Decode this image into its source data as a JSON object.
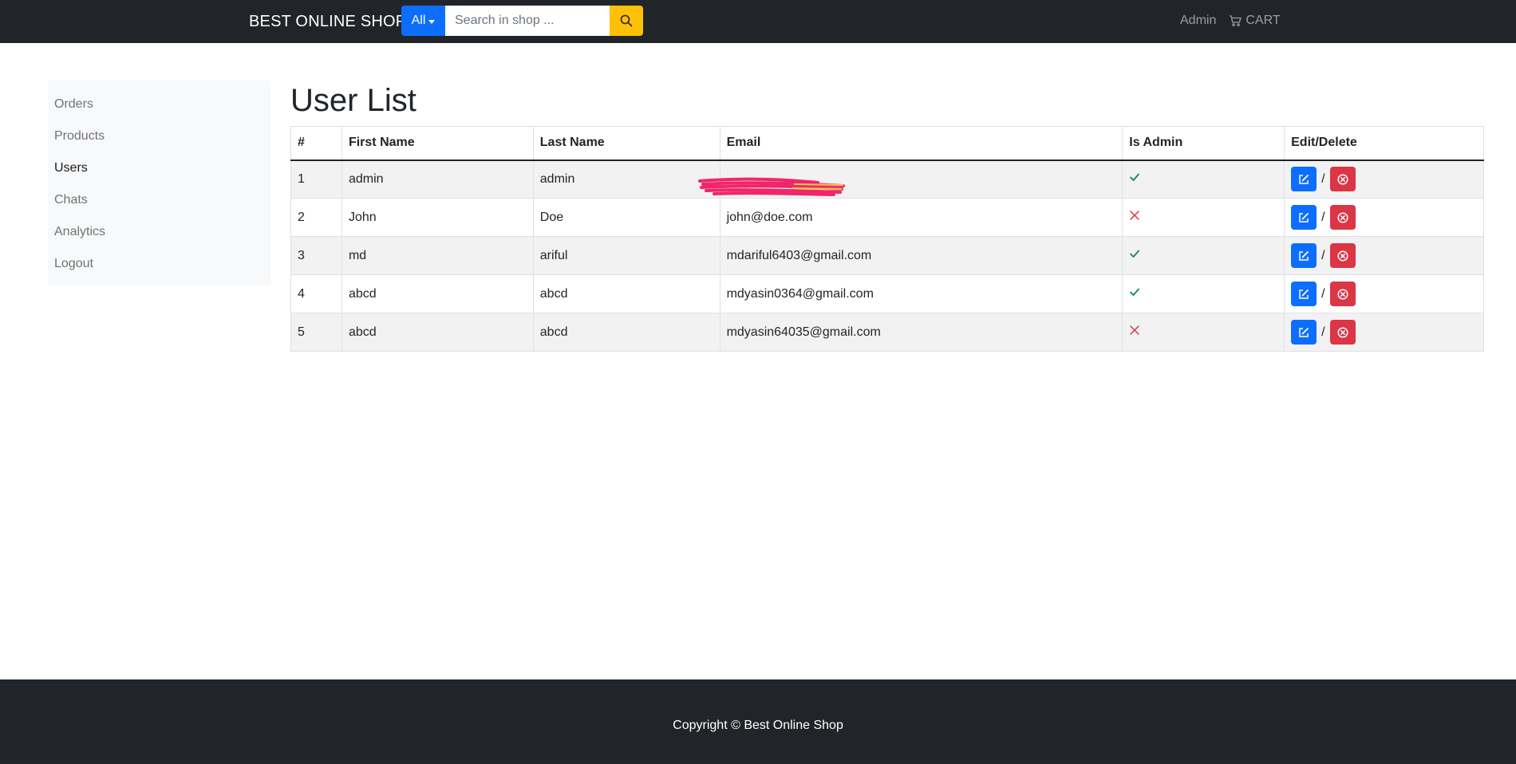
{
  "navbar": {
    "brand": "BEST ONLINE SHOP",
    "category_label": "All",
    "search_placeholder": "Search in shop ...",
    "admin_link": "Admin",
    "cart_link": "CART"
  },
  "sidebar": {
    "items": [
      {
        "label": "Orders"
      },
      {
        "label": "Products"
      },
      {
        "label": "Users",
        "active": true
      },
      {
        "label": "Chats"
      },
      {
        "label": "Analytics"
      },
      {
        "label": "Logout"
      }
    ]
  },
  "main": {
    "title": "User List",
    "table": {
      "headers": [
        "#",
        "First Name",
        "Last Name",
        "Email",
        "Is Admin",
        "Edit/Delete"
      ],
      "rows": [
        {
          "num": "1",
          "first": "admin",
          "last": "admin",
          "email": "",
          "is_admin": true
        },
        {
          "num": "2",
          "first": "John",
          "last": "Doe",
          "email": "john@doe.com",
          "is_admin": false
        },
        {
          "num": "3",
          "first": "md",
          "last": "ariful",
          "email": "mdariful6403@gmail.com",
          "is_admin": true
        },
        {
          "num": "4",
          "first": "abcd",
          "last": "abcd",
          "email": "mdyasin0364@gmail.com",
          "is_admin": true
        },
        {
          "num": "5",
          "first": "abcd",
          "last": "abcd",
          "email": "mdyasin64035@gmail.com",
          "is_admin": false
        }
      ],
      "separator": "/"
    }
  },
  "footer": {
    "copyright": "Copyright © Best Online Shop"
  },
  "icons": {
    "search": "search-icon",
    "cart": "cart-icon",
    "edit": "edit-icon",
    "delete": "delete-icon",
    "check": "check-icon",
    "cross": "cross-icon"
  },
  "colors": {
    "navbar": "#212529",
    "primary": "#0d6efd",
    "warning": "#ffc107",
    "danger": "#dc3545",
    "success": "#198754"
  }
}
